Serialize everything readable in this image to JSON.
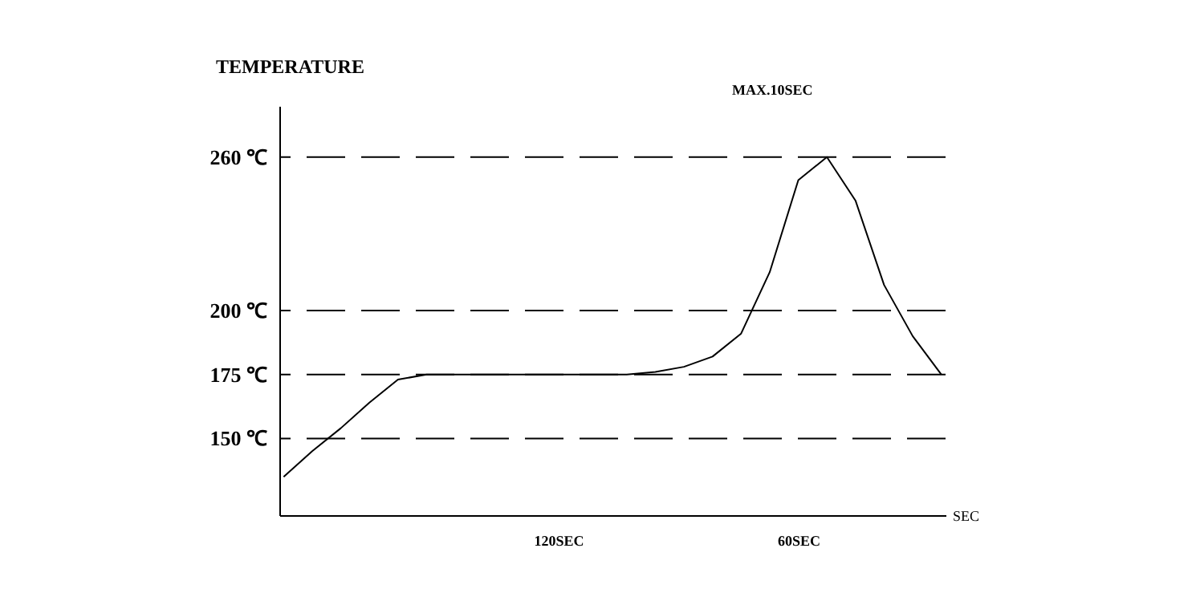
{
  "chart_data": {
    "type": "line",
    "xlabel": "SEC",
    "ylabel": "TEMPERATURE",
    "categories": [
      null,
      null,
      null,
      null,
      null,
      null,
      null,
      null,
      null,
      null,
      null,
      null,
      null,
      null,
      null,
      null,
      null,
      null,
      null,
      null,
      null,
      null,
      null,
      null
    ],
    "series": [
      {
        "color": "#000000",
        "values": [
          135,
          145,
          154,
          164,
          173,
          175,
          175,
          175,
          175,
          175,
          175,
          175,
          175,
          176,
          178,
          182,
          191,
          215,
          251,
          260,
          243,
          210,
          190,
          175
        ]
      }
    ],
    "ylim": [
      120,
      280
    ],
    "yticks": [
      {
        "value": 150,
        "label": "150 ℃"
      },
      {
        "value": 175,
        "label": "175 ℃"
      },
      {
        "value": 200,
        "label": "200 ℃"
      },
      {
        "value": 260,
        "label": "260 ℃"
      }
    ],
    "tick_labels": "y",
    "marker": "none",
    "line_style": "solid",
    "ref_lines": [
      {
        "axis": "y",
        "value": 150,
        "color": "#000000",
        "line_style": "dashed"
      },
      {
        "axis": "y",
        "value": 175,
        "color": "#000000",
        "line_style": "dashed"
      },
      {
        "axis": "y",
        "value": 200,
        "color": "#000000",
        "line_style": "dashed"
      },
      {
        "axis": "y",
        "value": 260,
        "color": "#000000",
        "line_style": "dashed"
      }
    ],
    "annotations": [
      "120SEC",
      "60SEC",
      "MAX.10SEC"
    ]
  }
}
